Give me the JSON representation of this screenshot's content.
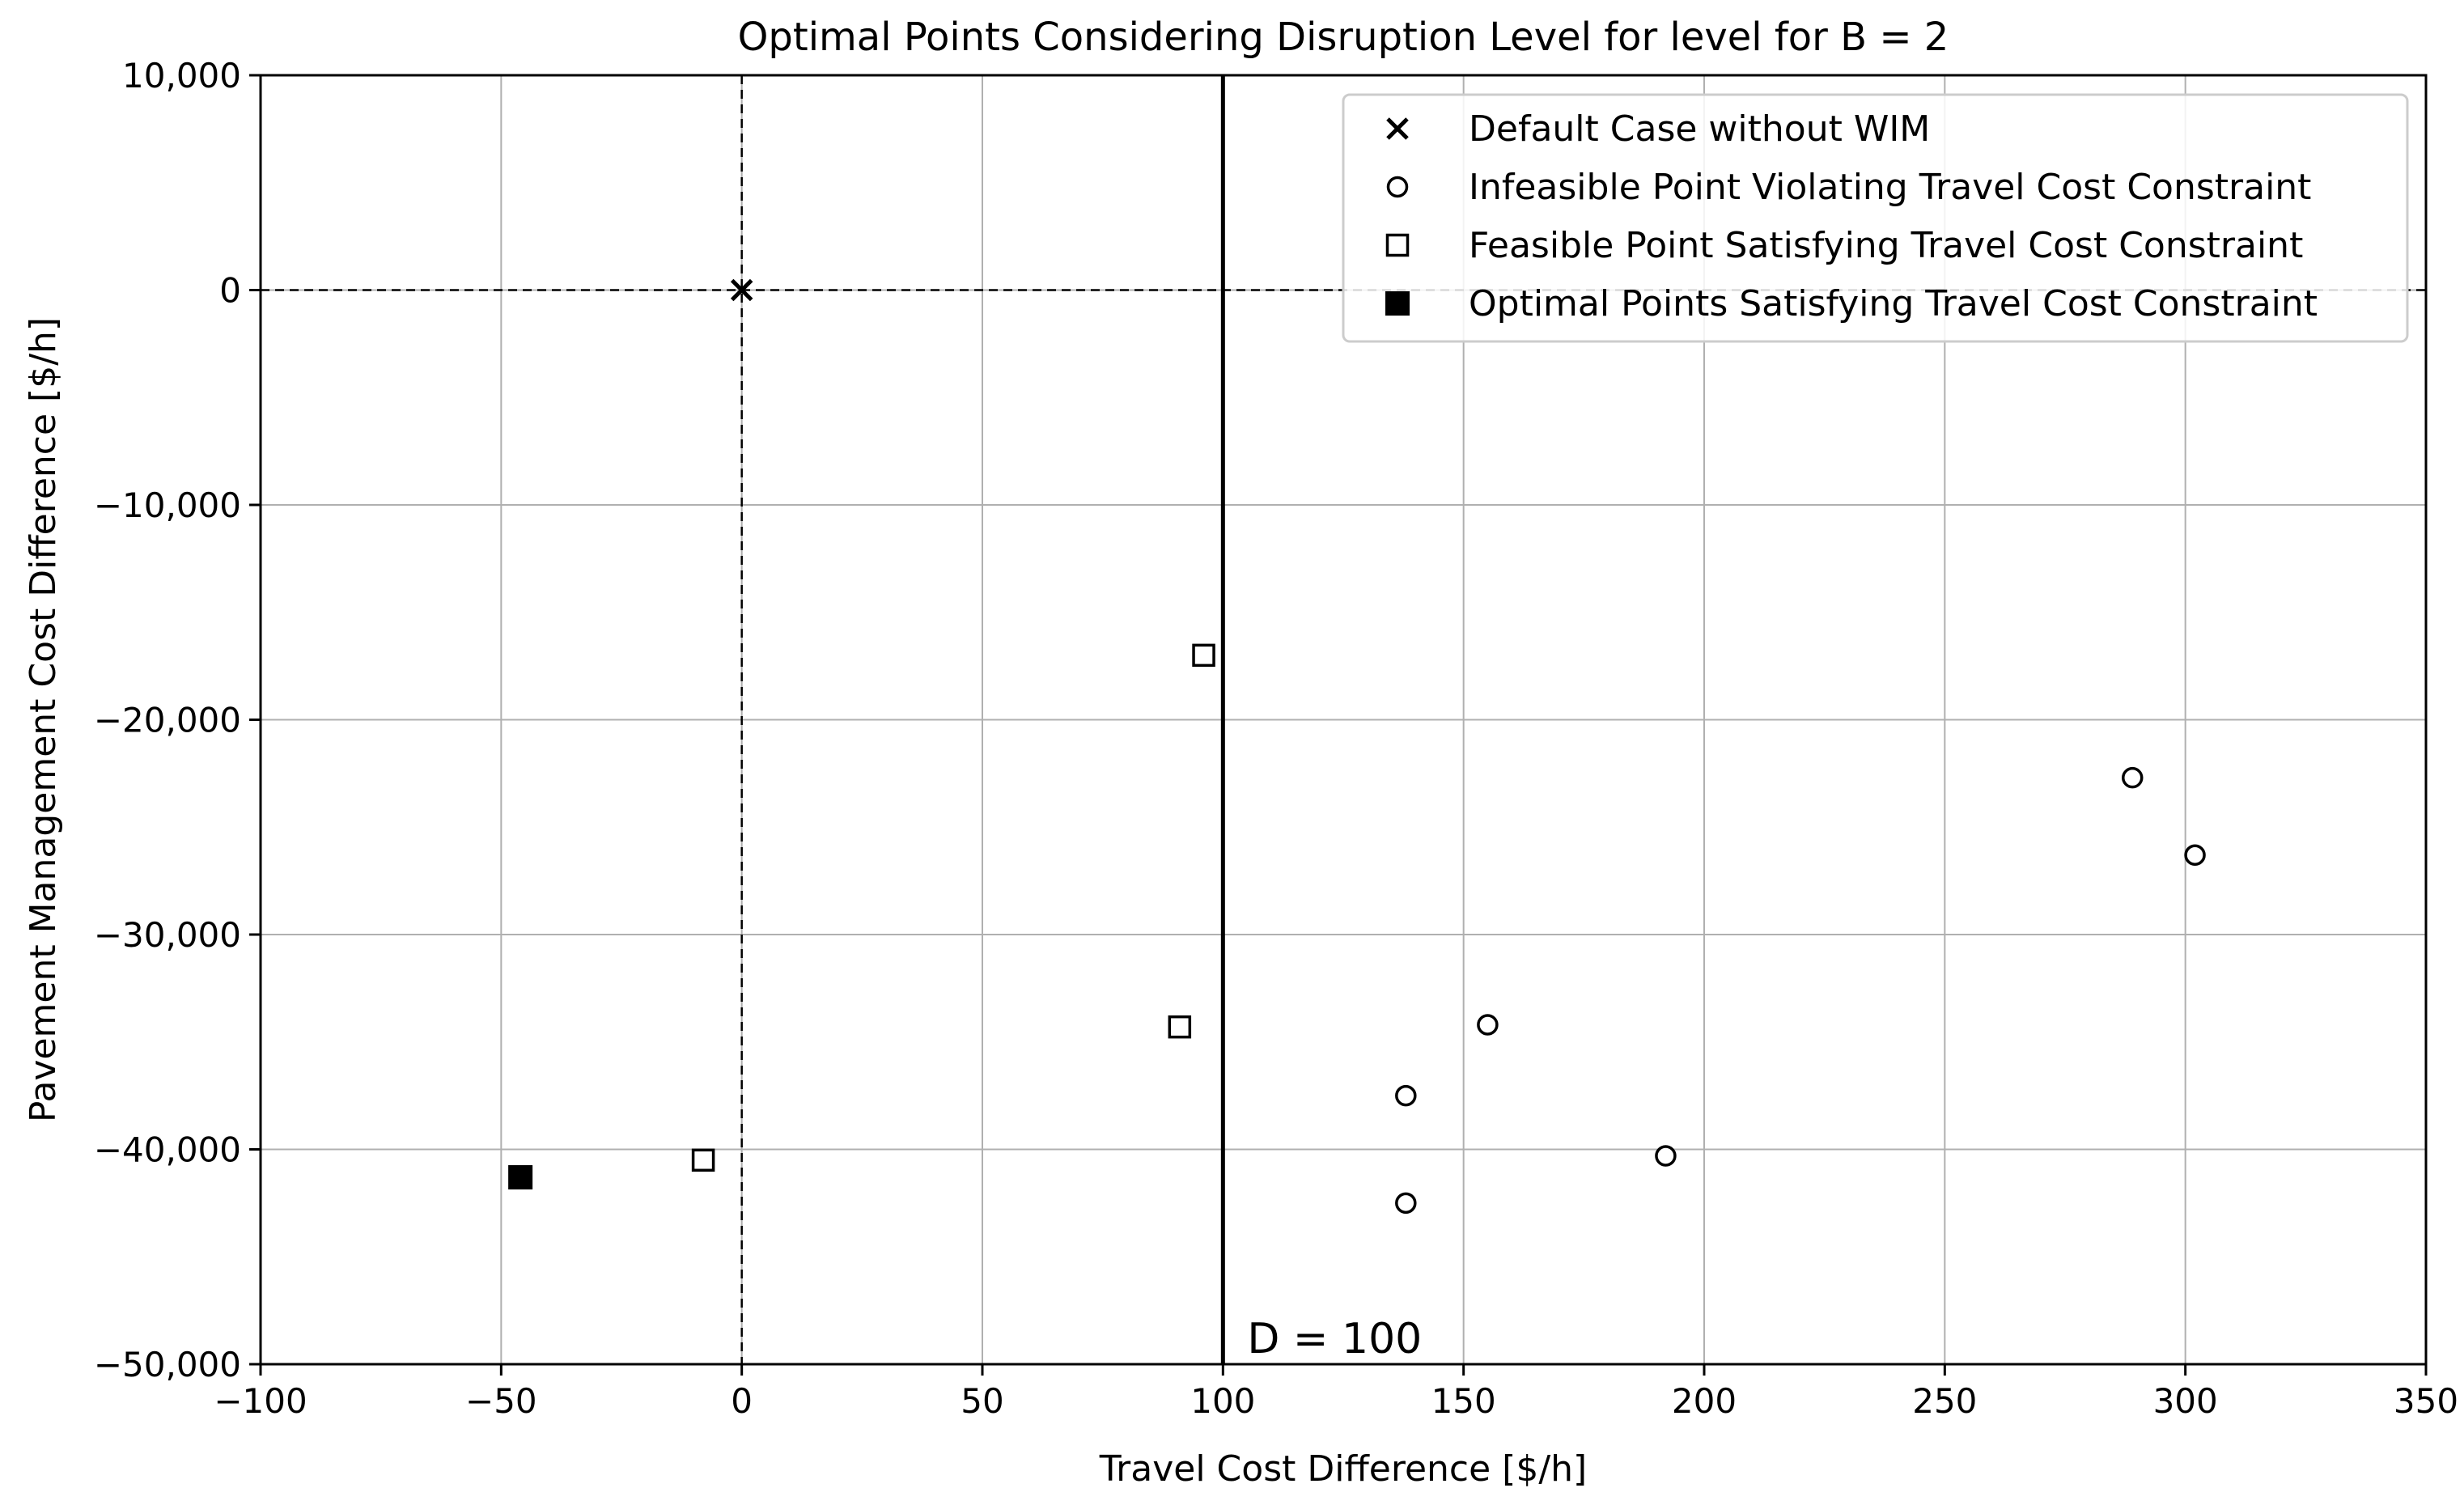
{
  "chart_data": {
    "type": "scatter",
    "title": "Optimal Points Considering Disruption Level for level for B = 2",
    "xlabel": "Travel Cost Difference [$/h]",
    "ylabel": "Pavement Management Cost Difference [$/h]",
    "xlim": [
      -100,
      350
    ],
    "ylim": [
      -50000,
      10000
    ],
    "x_ticks": [
      -100,
      -50,
      0,
      50,
      100,
      150,
      200,
      250,
      300,
      350
    ],
    "x_tick_labels": [
      "−100",
      "−50",
      "0",
      "50",
      "100",
      "150",
      "200",
      "250",
      "300",
      "350"
    ],
    "y_ticks": [
      10000,
      0,
      -10000,
      -20000,
      -30000,
      -40000,
      -50000
    ],
    "y_tick_labels": [
      "10,000",
      "0",
      "−10,000",
      "−20,000",
      "−30,000",
      "−40,000",
      "−50,000"
    ],
    "grid": true,
    "legend_position": "top-right",
    "reference_lines": {
      "x_zero_dashed": 0,
      "y_zero_dashed": 0,
      "threshold_x": 100,
      "threshold_label": "D = 100"
    },
    "series": [
      {
        "name": "Default Case without WIM",
        "marker": "x",
        "points": [
          {
            "x": 0,
            "y": 0
          }
        ]
      },
      {
        "name": "Infeasible Point Violating Travel Cost Constraint",
        "marker": "circle",
        "points": [
          {
            "x": 138,
            "y": -37500
          },
          {
            "x": 138,
            "y": -42500
          },
          {
            "x": 155,
            "y": -34200
          },
          {
            "x": 192,
            "y": -40300
          },
          {
            "x": 289,
            "y": -22700
          },
          {
            "x": 302,
            "y": -26300
          }
        ]
      },
      {
        "name": "Feasible Point Satisfying Travel Cost Constraint",
        "marker": "square-open",
        "points": [
          {
            "x": 96,
            "y": -17000
          },
          {
            "x": 91,
            "y": -34300
          },
          {
            "x": -8,
            "y": -40500
          }
        ]
      },
      {
        "name": "Optimal Points Satisfying Travel Cost Constraint",
        "marker": "square-filled",
        "points": [
          {
            "x": -46,
            "y": -41300
          }
        ]
      }
    ]
  }
}
